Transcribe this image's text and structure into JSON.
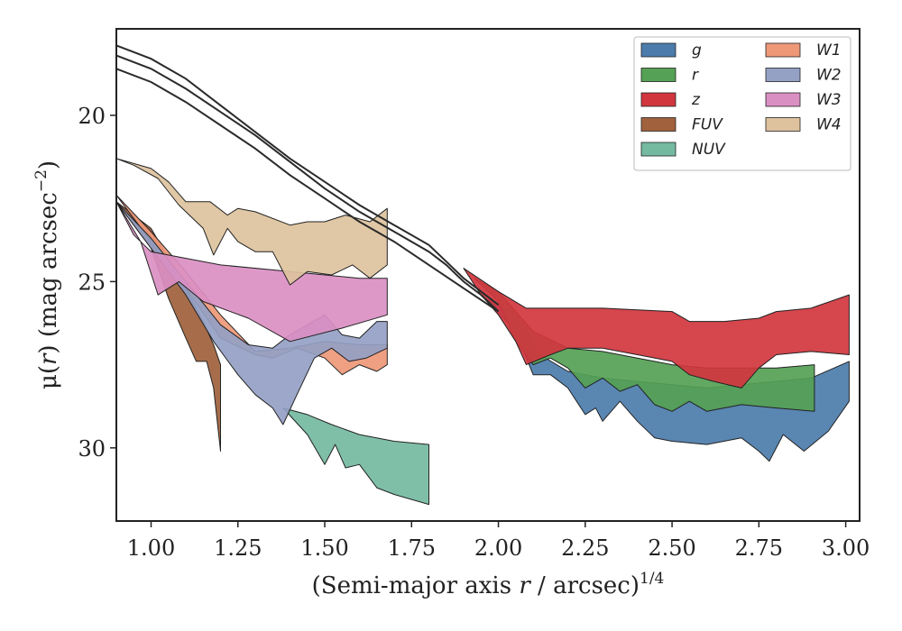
{
  "chart_data": {
    "type": "area",
    "xlabel": {
      "pre": "(Semi-major axis ",
      "var": "r",
      "post": " / arcsec)",
      "sup": "1/4"
    },
    "ylabel": {
      "mu": "μ(",
      "var": "r",
      "post": ") (mag arcsec",
      "sup": "−2",
      "end": ")"
    },
    "xlim": [
      0.9,
      3.04
    ],
    "ylim": [
      32.2,
      17.4
    ],
    "y_inverted": true,
    "grid": false,
    "legend_position": "top-right",
    "xticks": [
      {
        "value": 1.0,
        "label": "1.00"
      },
      {
        "value": 1.25,
        "label": "1.25"
      },
      {
        "value": 1.5,
        "label": "1.50"
      },
      {
        "value": 1.75,
        "label": "1.75"
      },
      {
        "value": 2.0,
        "label": "2.00"
      },
      {
        "value": 2.25,
        "label": "2.25"
      },
      {
        "value": 2.5,
        "label": "2.50"
      },
      {
        "value": 2.75,
        "label": "2.75"
      },
      {
        "value": 3.0,
        "label": "3.00"
      }
    ],
    "yticks": [
      {
        "value": 20,
        "label": "20"
      },
      {
        "value": 25,
        "label": "25"
      },
      {
        "value": 30,
        "label": "30"
      }
    ],
    "legend": [
      {
        "name": "g",
        "color": "#4c7cab"
      },
      {
        "name": "r",
        "color": "#55a155"
      },
      {
        "name": "z",
        "color": "#d1363e"
      },
      {
        "name": "FUV",
        "color": "#a0613c"
      },
      {
        "name": "NUV",
        "color": "#74baa1"
      },
      {
        "name": "W1",
        "color": "#ee9878"
      },
      {
        "name": "W2",
        "color": "#94a0c4"
      },
      {
        "name": "W3",
        "color": "#da8fc3"
      },
      {
        "name": "W4",
        "color": "#ddc29d"
      }
    ],
    "lines": [
      {
        "x": [
          0.9,
          1.0,
          1.1,
          1.2,
          1.3,
          1.4,
          1.5,
          1.6,
          1.7,
          1.8,
          1.9,
          2.0
        ],
        "y": [
          18.6,
          19.0,
          19.6,
          20.3,
          21.0,
          21.8,
          22.5,
          23.2,
          23.8,
          24.5,
          25.2,
          25.9
        ]
      },
      {
        "x": [
          0.9,
          1.0,
          1.1,
          1.2,
          1.3,
          1.4,
          1.5,
          1.6,
          1.7,
          1.8,
          1.85,
          1.9,
          1.95,
          2.0
        ],
        "y": [
          18.2,
          18.6,
          19.2,
          19.9,
          20.6,
          21.4,
          22.2,
          22.9,
          23.5,
          24.1,
          24.5,
          25.0,
          25.4,
          25.9
        ]
      },
      {
        "x": [
          0.9,
          1.0,
          1.1,
          1.2,
          1.3,
          1.4,
          1.5,
          1.6,
          1.7,
          1.8,
          1.85,
          1.9,
          1.95,
          2.0
        ],
        "y": [
          17.9,
          18.3,
          18.9,
          19.7,
          20.5,
          21.3,
          22.0,
          22.7,
          23.3,
          23.9,
          24.4,
          24.9,
          25.3,
          25.7
        ]
      }
    ],
    "series": [
      {
        "name": "g",
        "color": "#4c7cab",
        "upper": [
          [
            1.96,
            25.5
          ],
          [
            2.05,
            25.9
          ],
          [
            2.12,
            27.2
          ],
          [
            2.2,
            27.7
          ],
          [
            2.3,
            27.9
          ],
          [
            2.4,
            28.0
          ],
          [
            2.5,
            28.1
          ],
          [
            2.6,
            28.2
          ],
          [
            2.7,
            28.1
          ],
          [
            2.8,
            28.0
          ],
          [
            2.9,
            27.9
          ],
          [
            3.01,
            27.4
          ]
        ],
        "lower": [
          [
            1.96,
            25.5
          ],
          [
            2.05,
            26.5
          ],
          [
            2.1,
            27.8
          ],
          [
            2.15,
            27.8
          ],
          [
            2.2,
            28.2
          ],
          [
            2.25,
            29.0
          ],
          [
            2.28,
            28.8
          ],
          [
            2.3,
            29.2
          ],
          [
            2.35,
            28.6
          ],
          [
            2.4,
            29.2
          ],
          [
            2.45,
            29.7
          ],
          [
            2.5,
            29.8
          ],
          [
            2.6,
            29.9
          ],
          [
            2.7,
            29.7
          ],
          [
            2.75,
            30.1
          ],
          [
            2.78,
            30.4
          ],
          [
            2.82,
            29.6
          ],
          [
            2.88,
            30.1
          ],
          [
            2.95,
            29.5
          ],
          [
            3.01,
            28.6
          ]
        ]
      },
      {
        "name": "r",
        "color": "#55a155",
        "upper": [
          [
            1.93,
            24.9
          ],
          [
            2.0,
            25.3
          ],
          [
            2.1,
            26.5
          ],
          [
            2.2,
            27.0
          ],
          [
            2.3,
            27.1
          ],
          [
            2.4,
            27.3
          ],
          [
            2.5,
            27.5
          ],
          [
            2.6,
            27.6
          ],
          [
            2.7,
            27.6
          ],
          [
            2.8,
            27.6
          ],
          [
            2.91,
            27.5
          ]
        ],
        "lower": [
          [
            1.93,
            24.9
          ],
          [
            2.0,
            25.6
          ],
          [
            2.05,
            26.8
          ],
          [
            2.1,
            27.5
          ],
          [
            2.15,
            27.3
          ],
          [
            2.2,
            27.6
          ],
          [
            2.25,
            28.2
          ],
          [
            2.3,
            27.9
          ],
          [
            2.35,
            28.3
          ],
          [
            2.4,
            28.1
          ],
          [
            2.45,
            28.7
          ],
          [
            2.5,
            28.9
          ],
          [
            2.55,
            28.6
          ],
          [
            2.6,
            28.9
          ],
          [
            2.7,
            28.7
          ],
          [
            2.8,
            28.8
          ],
          [
            2.91,
            28.9
          ]
        ]
      },
      {
        "name": "z",
        "color": "#d1363e",
        "upper": [
          [
            1.9,
            24.6
          ],
          [
            2.0,
            25.3
          ],
          [
            2.08,
            25.8
          ],
          [
            2.3,
            25.8
          ],
          [
            2.5,
            25.9
          ],
          [
            2.55,
            26.2
          ],
          [
            2.65,
            26.2
          ],
          [
            2.75,
            26.1
          ],
          [
            2.8,
            25.9
          ],
          [
            2.9,
            25.8
          ],
          [
            3.01,
            25.4
          ]
        ],
        "lower": [
          [
            1.9,
            24.6
          ],
          [
            1.95,
            25.4
          ],
          [
            2.0,
            26.0
          ],
          [
            2.05,
            26.8
          ],
          [
            2.08,
            27.5
          ],
          [
            2.15,
            27.2
          ],
          [
            2.2,
            27.0
          ],
          [
            2.3,
            27.0
          ],
          [
            2.4,
            27.2
          ],
          [
            2.5,
            27.4
          ],
          [
            2.55,
            27.8
          ],
          [
            2.62,
            28.0
          ],
          [
            2.7,
            28.2
          ],
          [
            2.75,
            27.6
          ],
          [
            2.8,
            27.2
          ],
          [
            2.9,
            27.1
          ],
          [
            3.01,
            27.2
          ]
        ]
      },
      {
        "name": "FUV",
        "color": "#a0613c",
        "upper": [
          [
            0.9,
            22.6
          ],
          [
            1.0,
            23.4
          ],
          [
            1.05,
            24.3
          ],
          [
            1.1,
            25.2
          ],
          [
            1.15,
            26.2
          ],
          [
            1.18,
            26.9
          ],
          [
            1.2,
            27.5
          ]
        ],
        "lower": [
          [
            0.9,
            22.6
          ],
          [
            1.0,
            24.0
          ],
          [
            1.05,
            25.5
          ],
          [
            1.1,
            26.7
          ],
          [
            1.13,
            27.4
          ],
          [
            1.16,
            27.4
          ],
          [
            1.18,
            28.2
          ],
          [
            1.2,
            30.1
          ]
        ]
      },
      {
        "name": "NUV",
        "color": "#74baa1",
        "upper": [
          [
            1.38,
            28.8
          ],
          [
            1.45,
            29.0
          ],
          [
            1.52,
            29.3
          ],
          [
            1.6,
            29.6
          ],
          [
            1.7,
            29.8
          ],
          [
            1.8,
            29.9
          ]
        ],
        "lower": [
          [
            1.38,
            28.8
          ],
          [
            1.45,
            29.6
          ],
          [
            1.5,
            30.5
          ],
          [
            1.53,
            29.9
          ],
          [
            1.56,
            30.6
          ],
          [
            1.6,
            30.5
          ],
          [
            1.65,
            31.2
          ],
          [
            1.7,
            31.4
          ],
          [
            1.8,
            31.7
          ]
        ]
      },
      {
        "name": "W1",
        "color": "#ee9878",
        "upper": [
          [
            0.9,
            22.4
          ],
          [
            1.0,
            23.5
          ],
          [
            1.1,
            24.7
          ],
          [
            1.2,
            26.0
          ],
          [
            1.3,
            27.1
          ],
          [
            1.4,
            27.0
          ],
          [
            1.5,
            26.8
          ],
          [
            1.6,
            26.9
          ],
          [
            1.68,
            26.9
          ]
        ],
        "lower": [
          [
            0.9,
            22.4
          ],
          [
            1.0,
            23.8
          ],
          [
            1.1,
            25.2
          ],
          [
            1.2,
            26.7
          ],
          [
            1.3,
            27.2
          ],
          [
            1.35,
            27.3
          ],
          [
            1.42,
            27.0
          ],
          [
            1.5,
            27.3
          ],
          [
            1.55,
            27.8
          ],
          [
            1.6,
            27.5
          ],
          [
            1.65,
            27.7
          ],
          [
            1.68,
            27.5
          ]
        ]
      },
      {
        "name": "W2",
        "color": "#94a0c4",
        "upper": [
          [
            0.9,
            22.6
          ],
          [
            1.0,
            23.7
          ],
          [
            1.1,
            25.0
          ],
          [
            1.2,
            26.3
          ],
          [
            1.28,
            26.9
          ],
          [
            1.35,
            27.0
          ],
          [
            1.4,
            26.6
          ],
          [
            1.45,
            26.3
          ],
          [
            1.5,
            26.0
          ],
          [
            1.55,
            26.6
          ],
          [
            1.6,
            26.7
          ],
          [
            1.65,
            26.2
          ],
          [
            1.68,
            26.2
          ]
        ],
        "lower": [
          [
            0.9,
            22.6
          ],
          [
            1.0,
            24.0
          ],
          [
            1.1,
            25.4
          ],
          [
            1.18,
            26.8
          ],
          [
            1.25,
            27.8
          ],
          [
            1.3,
            28.4
          ],
          [
            1.35,
            28.8
          ],
          [
            1.38,
            29.3
          ],
          [
            1.42,
            28.4
          ],
          [
            1.47,
            27.3
          ],
          [
            1.52,
            27.0
          ],
          [
            1.57,
            27.4
          ],
          [
            1.62,
            27.3
          ],
          [
            1.68,
            27.0
          ]
        ]
      },
      {
        "name": "W3",
        "color": "#da8fc3",
        "upper": [
          [
            0.9,
            22.6
          ],
          [
            0.95,
            23.6
          ],
          [
            1.0,
            24.1
          ],
          [
            1.2,
            24.5
          ],
          [
            1.4,
            24.7
          ],
          [
            1.6,
            24.9
          ],
          [
            1.68,
            24.9
          ]
        ],
        "lower": [
          [
            0.9,
            22.6
          ],
          [
            0.97,
            23.8
          ],
          [
            1.02,
            25.4
          ],
          [
            1.08,
            25.0
          ],
          [
            1.15,
            25.6
          ],
          [
            1.28,
            26.1
          ],
          [
            1.4,
            26.8
          ],
          [
            1.55,
            26.4
          ],
          [
            1.68,
            26.0
          ]
        ]
      },
      {
        "name": "W4",
        "color": "#ddc29d",
        "upper": [
          [
            0.9,
            21.3
          ],
          [
            1.0,
            21.6
          ],
          [
            1.05,
            22.0
          ],
          [
            1.1,
            22.6
          ],
          [
            1.17,
            22.6
          ],
          [
            1.22,
            23.0
          ],
          [
            1.25,
            22.8
          ],
          [
            1.3,
            22.9
          ],
          [
            1.4,
            23.3
          ],
          [
            1.45,
            23.2
          ],
          [
            1.5,
            23.2
          ],
          [
            1.56,
            23.0
          ],
          [
            1.63,
            23.2
          ],
          [
            1.68,
            22.8
          ]
        ],
        "lower": [
          [
            0.9,
            21.3
          ],
          [
            0.95,
            21.5
          ],
          [
            1.02,
            21.9
          ],
          [
            1.08,
            22.7
          ],
          [
            1.15,
            23.4
          ],
          [
            1.18,
            24.2
          ],
          [
            1.22,
            23.4
          ],
          [
            1.25,
            23.8
          ],
          [
            1.3,
            24.1
          ],
          [
            1.35,
            24.1
          ],
          [
            1.4,
            25.1
          ],
          [
            1.45,
            24.7
          ],
          [
            1.52,
            24.8
          ],
          [
            1.58,
            24.5
          ],
          [
            1.63,
            24.9
          ],
          [
            1.68,
            24.5
          ]
        ]
      }
    ]
  }
}
